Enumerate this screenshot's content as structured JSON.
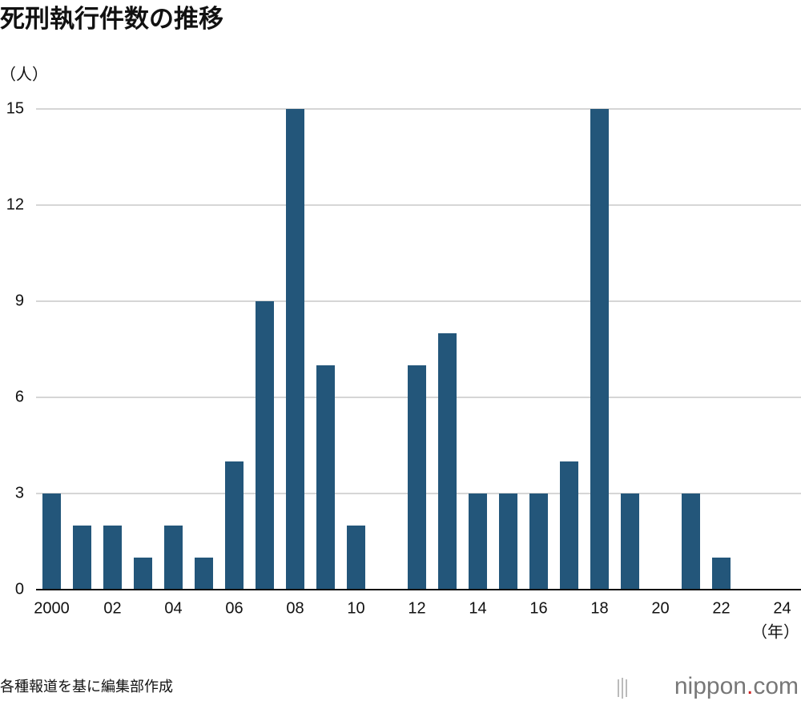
{
  "chart_data": {
    "type": "bar",
    "title": "死刑執行件数の推移",
    "y_label": "（人）",
    "x_label": "（年）",
    "categories": [
      "2000",
      null,
      "02",
      null,
      "04",
      null,
      "06",
      null,
      "08",
      null,
      "10",
      null,
      "12",
      null,
      "14",
      null,
      "16",
      null,
      "18",
      null,
      "20",
      null,
      "22",
      null,
      "24"
    ],
    "values": [
      3,
      2,
      2,
      1,
      2,
      1,
      4,
      9,
      15,
      7,
      2,
      0,
      7,
      8,
      3,
      3,
      3,
      4,
      15,
      3,
      0,
      3,
      1,
      0,
      0
    ],
    "color": "#23567a",
    "ylim": [
      0,
      15
    ],
    "yticks": [
      0,
      3,
      6,
      9,
      12,
      15
    ],
    "grid": true,
    "source": "各種報道を基に編集部作成"
  },
  "logo": {
    "name": "nippon",
    "dot": ".",
    "tld": "com"
  }
}
